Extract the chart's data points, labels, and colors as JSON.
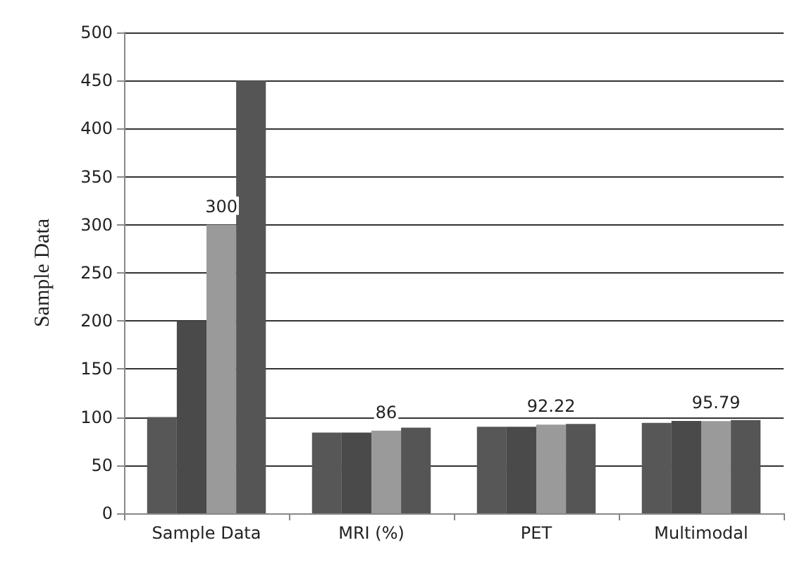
{
  "chart_data": {
    "type": "bar",
    "ylabel": "Sample Data",
    "categories": [
      "Sample Data",
      "MRI (%)",
      "PET",
      "Multimodal"
    ],
    "series": [
      {
        "color": "#575757",
        "values": [
          100,
          84,
          90,
          94
        ]
      },
      {
        "color": "#4a4a4a",
        "values": [
          200,
          84,
          90,
          96
        ]
      },
      {
        "color": "#9a9a9a",
        "values": [
          300,
          86,
          92.22,
          95.79
        ],
        "value_labels": [
          "300",
          "86",
          "92.22",
          "95.79"
        ]
      },
      {
        "color": "#555555",
        "values": [
          450,
          89,
          93,
          97
        ]
      }
    ],
    "ylim": [
      0,
      500
    ],
    "yticks": [
      0,
      50,
      100,
      150,
      200,
      250,
      300,
      350,
      400,
      450,
      500
    ],
    "grid": "y"
  }
}
